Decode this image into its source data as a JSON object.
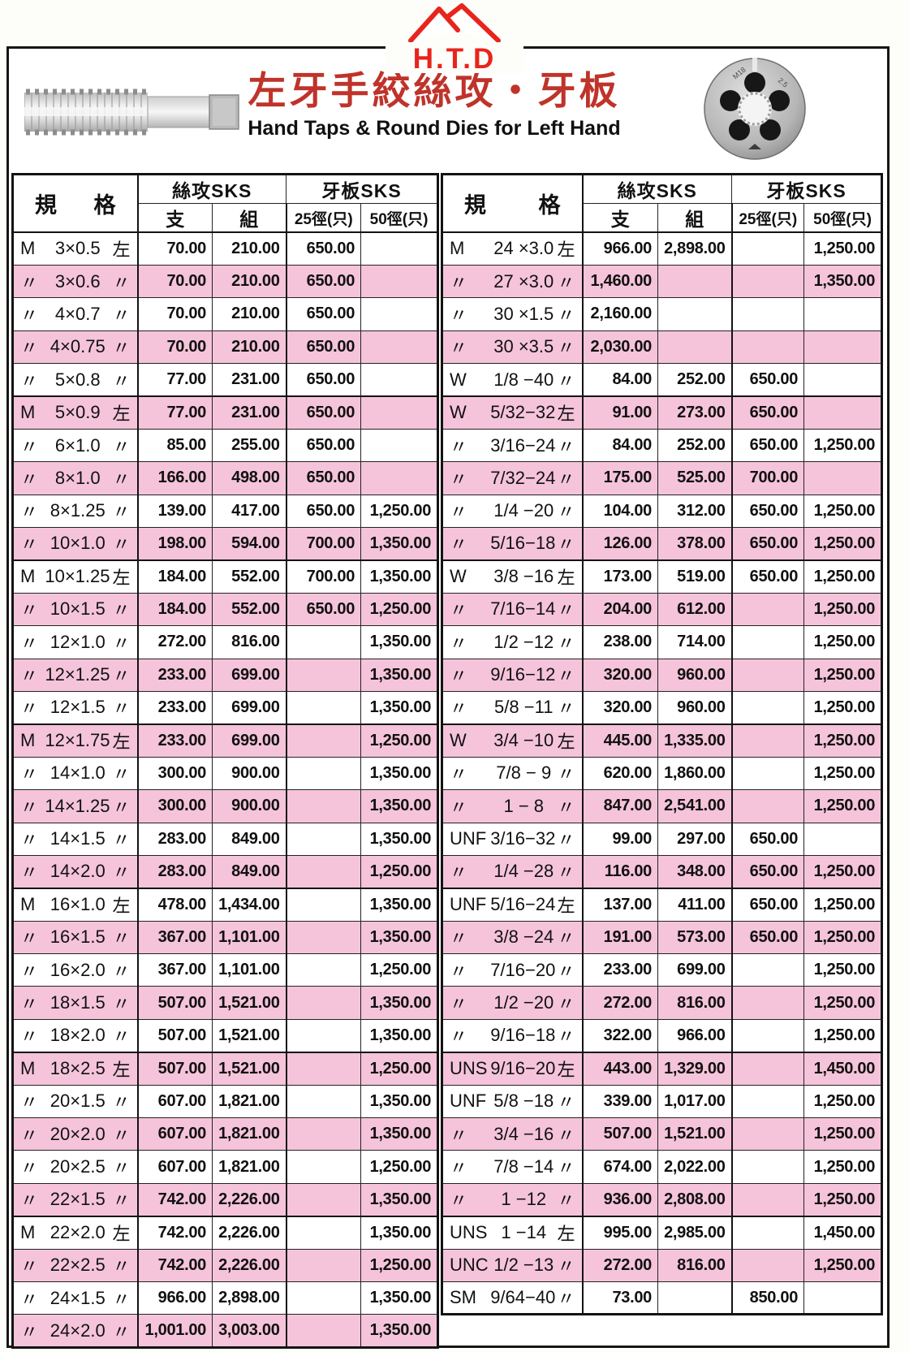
{
  "brand": {
    "logo_text": "H.T.D"
  },
  "header": {
    "title": "左牙手絞絲攻・牙板",
    "subtitle": "Hand Taps & Round Dies for Left Hand"
  },
  "table_headers": {
    "spec_a": "規",
    "spec_b": "格",
    "tap_group": "絲攻SKS",
    "die_group": "牙板SKS",
    "tap_unit": "支",
    "tap_set": "組",
    "die_25": "25徑(只)",
    "die_50": "50徑(只)"
  },
  "colors": {
    "row_pink": "#f5c4da",
    "logo_red": "#e8241c",
    "title_red": "#bf332a"
  },
  "left_table": {
    "rows": [
      {
        "prefix": "M",
        "body": "3×0.5",
        "suffix": "左",
        "zhi": "70.00",
        "zu": "210.00",
        "d25": "650.00",
        "d50": ""
      },
      {
        "prefix": "〃",
        "body": "3×0.6",
        "suffix": "〃",
        "zhi": "70.00",
        "zu": "210.00",
        "d25": "650.00",
        "d50": ""
      },
      {
        "prefix": "〃",
        "body": "4×0.7",
        "suffix": "〃",
        "zhi": "70.00",
        "zu": "210.00",
        "d25": "650.00",
        "d50": ""
      },
      {
        "prefix": "〃",
        "body": "4×0.75",
        "suffix": "〃",
        "zhi": "70.00",
        "zu": "210.00",
        "d25": "650.00",
        "d50": ""
      },
      {
        "prefix": "〃",
        "body": "5×0.8",
        "suffix": "〃",
        "zhi": "77.00",
        "zu": "231.00",
        "d25": "650.00",
        "d50": ""
      },
      {
        "prefix": "M",
        "body": "5×0.9",
        "suffix": "左",
        "zhi": "77.00",
        "zu": "231.00",
        "d25": "650.00",
        "d50": ""
      },
      {
        "prefix": "〃",
        "body": "6×1.0",
        "suffix": "〃",
        "zhi": "85.00",
        "zu": "255.00",
        "d25": "650.00",
        "d50": ""
      },
      {
        "prefix": "〃",
        "body": "8×1.0",
        "suffix": "〃",
        "zhi": "166.00",
        "zu": "498.00",
        "d25": "650.00",
        "d50": ""
      },
      {
        "prefix": "〃",
        "body": "8×1.25",
        "suffix": "〃",
        "zhi": "139.00",
        "zu": "417.00",
        "d25": "650.00",
        "d50": "1,250.00"
      },
      {
        "prefix": "〃",
        "body": "10×1.0",
        "suffix": "〃",
        "zhi": "198.00",
        "zu": "594.00",
        "d25": "700.00",
        "d50": "1,350.00"
      },
      {
        "prefix": "M",
        "body": "10×1.25",
        "suffix": "左",
        "zhi": "184.00",
        "zu": "552.00",
        "d25": "700.00",
        "d50": "1,350.00"
      },
      {
        "prefix": "〃",
        "body": "10×1.5",
        "suffix": "〃",
        "zhi": "184.00",
        "zu": "552.00",
        "d25": "650.00",
        "d50": "1,250.00"
      },
      {
        "prefix": "〃",
        "body": "12×1.0",
        "suffix": "〃",
        "zhi": "272.00",
        "zu": "816.00",
        "d25": "",
        "d50": "1,350.00"
      },
      {
        "prefix": "〃",
        "body": "12×1.25",
        "suffix": "〃",
        "zhi": "233.00",
        "zu": "699.00",
        "d25": "",
        "d50": "1,350.00"
      },
      {
        "prefix": "〃",
        "body": "12×1.5",
        "suffix": "〃",
        "zhi": "233.00",
        "zu": "699.00",
        "d25": "",
        "d50": "1,350.00"
      },
      {
        "prefix": "M",
        "body": "12×1.75",
        "suffix": "左",
        "zhi": "233.00",
        "zu": "699.00",
        "d25": "",
        "d50": "1,250.00"
      },
      {
        "prefix": "〃",
        "body": "14×1.0",
        "suffix": "〃",
        "zhi": "300.00",
        "zu": "900.00",
        "d25": "",
        "d50": "1,350.00"
      },
      {
        "prefix": "〃",
        "body": "14×1.25",
        "suffix": "〃",
        "zhi": "300.00",
        "zu": "900.00",
        "d25": "",
        "d50": "1,350.00"
      },
      {
        "prefix": "〃",
        "body": "14×1.5",
        "suffix": "〃",
        "zhi": "283.00",
        "zu": "849.00",
        "d25": "",
        "d50": "1,350.00"
      },
      {
        "prefix": "〃",
        "body": "14×2.0",
        "suffix": "〃",
        "zhi": "283.00",
        "zu": "849.00",
        "d25": "",
        "d50": "1,250.00"
      },
      {
        "prefix": "M",
        "body": "16×1.0",
        "suffix": "左",
        "zhi": "478.00",
        "zu": "1,434.00",
        "d25": "",
        "d50": "1,350.00"
      },
      {
        "prefix": "〃",
        "body": "16×1.5",
        "suffix": "〃",
        "zhi": "367.00",
        "zu": "1,101.00",
        "d25": "",
        "d50": "1,350.00"
      },
      {
        "prefix": "〃",
        "body": "16×2.0",
        "suffix": "〃",
        "zhi": "367.00",
        "zu": "1,101.00",
        "d25": "",
        "d50": "1,250.00"
      },
      {
        "prefix": "〃",
        "body": "18×1.5",
        "suffix": "〃",
        "zhi": "507.00",
        "zu": "1,521.00",
        "d25": "",
        "d50": "1,350.00"
      },
      {
        "prefix": "〃",
        "body": "18×2.0",
        "suffix": "〃",
        "zhi": "507.00",
        "zu": "1,521.00",
        "d25": "",
        "d50": "1,350.00"
      },
      {
        "prefix": "M",
        "body": "18×2.5",
        "suffix": "左",
        "zhi": "507.00",
        "zu": "1,521.00",
        "d25": "",
        "d50": "1,250.00"
      },
      {
        "prefix": "〃",
        "body": "20×1.5",
        "suffix": "〃",
        "zhi": "607.00",
        "zu": "1,821.00",
        "d25": "",
        "d50": "1,350.00"
      },
      {
        "prefix": "〃",
        "body": "20×2.0",
        "suffix": "〃",
        "zhi": "607.00",
        "zu": "1,821.00",
        "d25": "",
        "d50": "1,350.00"
      },
      {
        "prefix": "〃",
        "body": "20×2.5",
        "suffix": "〃",
        "zhi": "607.00",
        "zu": "1,821.00",
        "d25": "",
        "d50": "1,250.00"
      },
      {
        "prefix": "〃",
        "body": "22×1.5",
        "suffix": "〃",
        "zhi": "742.00",
        "zu": "2,226.00",
        "d25": "",
        "d50": "1,350.00"
      },
      {
        "prefix": "M",
        "body": "22×2.0",
        "suffix": "左",
        "zhi": "742.00",
        "zu": "2,226.00",
        "d25": "",
        "d50": "1,350.00"
      },
      {
        "prefix": "〃",
        "body": "22×2.5",
        "suffix": "〃",
        "zhi": "742.00",
        "zu": "2,226.00",
        "d25": "",
        "d50": "1,250.00"
      },
      {
        "prefix": "〃",
        "body": "24×1.5",
        "suffix": "〃",
        "zhi": "966.00",
        "zu": "2,898.00",
        "d25": "",
        "d50": "1,350.00"
      },
      {
        "prefix": "〃",
        "body": "24×2.0",
        "suffix": "〃",
        "zhi": "1,001.00",
        "zu": "3,003.00",
        "d25": "",
        "d50": "1,350.00"
      }
    ]
  },
  "right_table": {
    "rows": [
      {
        "prefix": "M",
        "body": "24 ×3.0",
        "suffix": "左",
        "zhi": "966.00",
        "zu": "2,898.00",
        "d25": "",
        "d50": "1,250.00"
      },
      {
        "prefix": "〃",
        "body": "27 ×3.0",
        "suffix": "〃",
        "zhi": "1,460.00",
        "zu": "",
        "d25": "",
        "d50": "1,350.00"
      },
      {
        "prefix": "〃",
        "body": "30 ×1.5",
        "suffix": "〃",
        "zhi": "2,160.00",
        "zu": "",
        "d25": "",
        "d50": ""
      },
      {
        "prefix": "〃",
        "body": "30 ×3.5",
        "suffix": "〃",
        "zhi": "2,030.00",
        "zu": "",
        "d25": "",
        "d50": ""
      },
      {
        "prefix": "W",
        "body": "1/8 −40",
        "suffix": "〃",
        "zhi": "84.00",
        "zu": "252.00",
        "d25": "650.00",
        "d50": ""
      },
      {
        "prefix": "W",
        "body": "5/32−32",
        "suffix": "左",
        "zhi": "91.00",
        "zu": "273.00",
        "d25": "650.00",
        "d50": ""
      },
      {
        "prefix": "〃",
        "body": "3/16−24",
        "suffix": "〃",
        "zhi": "84.00",
        "zu": "252.00",
        "d25": "650.00",
        "d50": "1,250.00"
      },
      {
        "prefix": "〃",
        "body": "7/32−24",
        "suffix": "〃",
        "zhi": "175.00",
        "zu": "525.00",
        "d25": "700.00",
        "d50": ""
      },
      {
        "prefix": "〃",
        "body": "1/4 −20",
        "suffix": "〃",
        "zhi": "104.00",
        "zu": "312.00",
        "d25": "650.00",
        "d50": "1,250.00"
      },
      {
        "prefix": "〃",
        "body": "5/16−18",
        "suffix": "〃",
        "zhi": "126.00",
        "zu": "378.00",
        "d25": "650.00",
        "d50": "1,250.00"
      },
      {
        "prefix": "W",
        "body": "3/8 −16",
        "suffix": "左",
        "zhi": "173.00",
        "zu": "519.00",
        "d25": "650.00",
        "d50": "1,250.00"
      },
      {
        "prefix": "〃",
        "body": "7/16−14",
        "suffix": "〃",
        "zhi": "204.00",
        "zu": "612.00",
        "d25": "",
        "d50": "1,250.00"
      },
      {
        "prefix": "〃",
        "body": "1/2 −12",
        "suffix": "〃",
        "zhi": "238.00",
        "zu": "714.00",
        "d25": "",
        "d50": "1,250.00"
      },
      {
        "prefix": "〃",
        "body": "9/16−12",
        "suffix": "〃",
        "zhi": "320.00",
        "zu": "960.00",
        "d25": "",
        "d50": "1,250.00"
      },
      {
        "prefix": "〃",
        "body": "5/8 −11",
        "suffix": "〃",
        "zhi": "320.00",
        "zu": "960.00",
        "d25": "",
        "d50": "1,250.00"
      },
      {
        "prefix": "W",
        "body": "3/4 −10",
        "suffix": "左",
        "zhi": "445.00",
        "zu": "1,335.00",
        "d25": "",
        "d50": "1,250.00"
      },
      {
        "prefix": "〃",
        "body": "7/8 − 9",
        "suffix": "〃",
        "zhi": "620.00",
        "zu": "1,860.00",
        "d25": "",
        "d50": "1,250.00"
      },
      {
        "prefix": "〃",
        "body": "1 − 8",
        "suffix": "〃",
        "zhi": "847.00",
        "zu": "2,541.00",
        "d25": "",
        "d50": "1,250.00"
      },
      {
        "prefix": "UNF",
        "body": "3/16−32",
        "suffix": "〃",
        "zhi": "99.00",
        "zu": "297.00",
        "d25": "650.00",
        "d50": ""
      },
      {
        "prefix": "〃",
        "body": "1/4 −28",
        "suffix": "〃",
        "zhi": "116.00",
        "zu": "348.00",
        "d25": "650.00",
        "d50": "1,250.00"
      },
      {
        "prefix": "UNF",
        "body": "5/16−24",
        "suffix": "左",
        "zhi": "137.00",
        "zu": "411.00",
        "d25": "650.00",
        "d50": "1,250.00"
      },
      {
        "prefix": "〃",
        "body": "3/8 −24",
        "suffix": "〃",
        "zhi": "191.00",
        "zu": "573.00",
        "d25": "650.00",
        "d50": "1,250.00"
      },
      {
        "prefix": "〃",
        "body": "7/16−20",
        "suffix": "〃",
        "zhi": "233.00",
        "zu": "699.00",
        "d25": "",
        "d50": "1,250.00"
      },
      {
        "prefix": "〃",
        "body": "1/2 −20",
        "suffix": "〃",
        "zhi": "272.00",
        "zu": "816.00",
        "d25": "",
        "d50": "1,250.00"
      },
      {
        "prefix": "〃",
        "body": "9/16−18",
        "suffix": "〃",
        "zhi": "322.00",
        "zu": "966.00",
        "d25": "",
        "d50": "1,250.00"
      },
      {
        "prefix": "UNS",
        "body": "9/16−20",
        "suffix": "左",
        "zhi": "443.00",
        "zu": "1,329.00",
        "d25": "",
        "d50": "1,450.00"
      },
      {
        "prefix": "UNF",
        "body": "5/8 −18",
        "suffix": "〃",
        "zhi": "339.00",
        "zu": "1,017.00",
        "d25": "",
        "d50": "1,250.00"
      },
      {
        "prefix": "〃",
        "body": "3/4 −16",
        "suffix": "〃",
        "zhi": "507.00",
        "zu": "1,521.00",
        "d25": "",
        "d50": "1,250.00"
      },
      {
        "prefix": "〃",
        "body": "7/8 −14",
        "suffix": "〃",
        "zhi": "674.00",
        "zu": "2,022.00",
        "d25": "",
        "d50": "1,250.00"
      },
      {
        "prefix": "〃",
        "body": "1 −12",
        "suffix": "〃",
        "zhi": "936.00",
        "zu": "2,808.00",
        "d25": "",
        "d50": "1,250.00"
      },
      {
        "prefix": "UNS",
        "body": "1 −14",
        "suffix": "左",
        "zhi": "995.00",
        "zu": "2,985.00",
        "d25": "",
        "d50": "1,450.00"
      },
      {
        "prefix": "UNC",
        "body": "1/2 −13",
        "suffix": "〃",
        "zhi": "272.00",
        "zu": "816.00",
        "d25": "",
        "d50": "1,250.00"
      },
      {
        "prefix": "SM",
        "body": "9/64−40",
        "suffix": "〃",
        "zhi": "73.00",
        "zu": "",
        "d25": "850.00",
        "d50": ""
      }
    ]
  }
}
